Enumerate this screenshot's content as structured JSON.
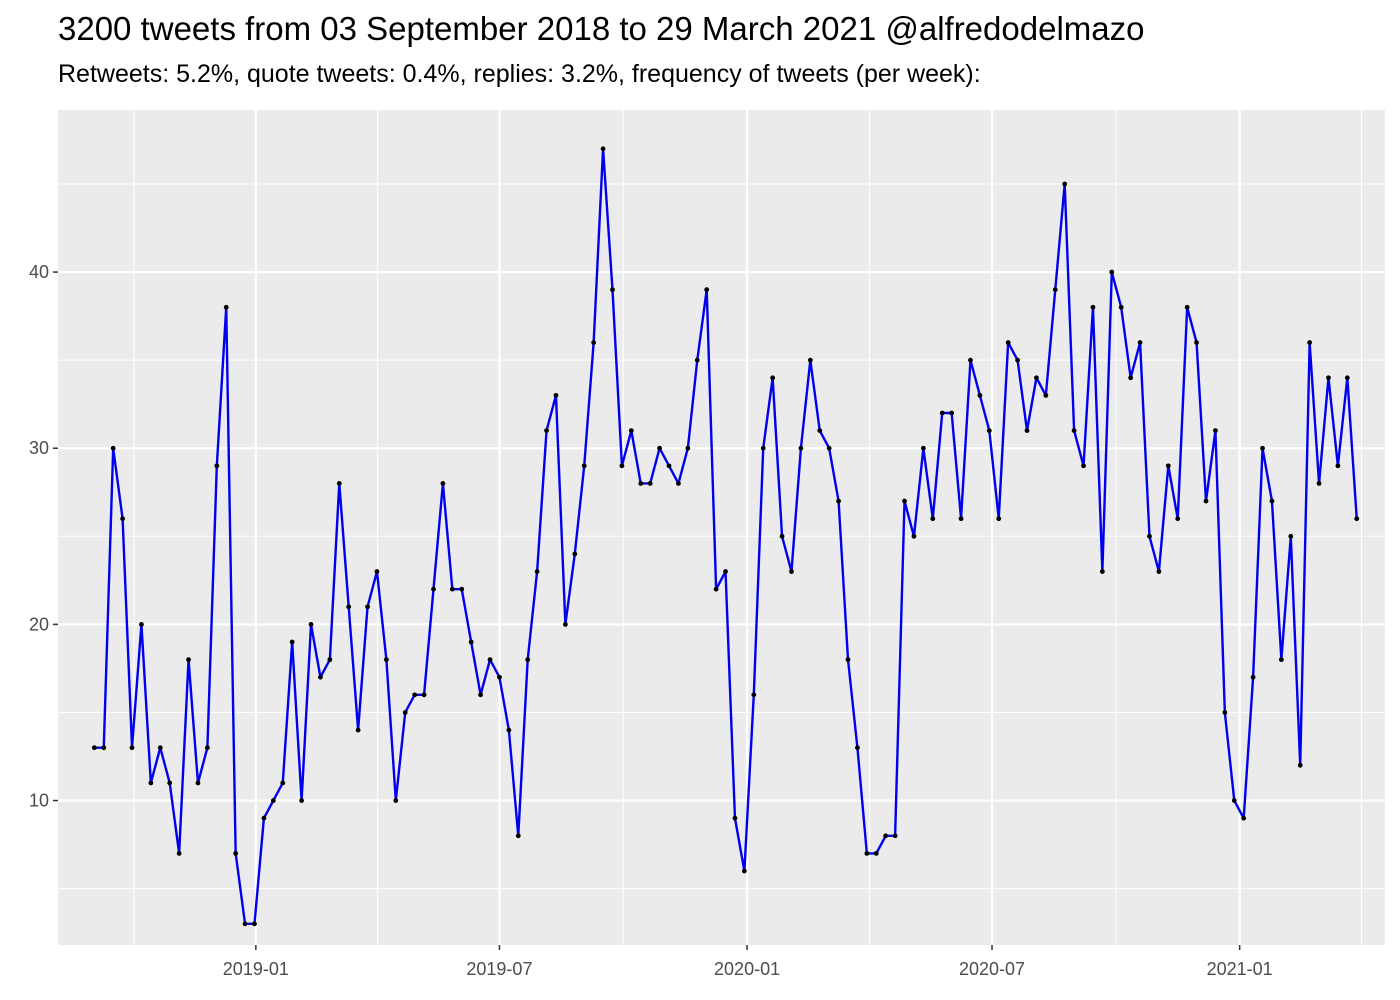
{
  "chart_data": {
    "type": "line",
    "title": "3200 tweets from 03 September 2018 to 29 March 2021 @alfredodelmazo",
    "subtitle": "Retweets: 5.2%, quote tweets: 0.4%, replies: 3.2%, frequency of tweets (per week):",
    "xlabel": "",
    "ylabel": "",
    "x_start_date": "2018-09-03",
    "x_step_days": 7,
    "x_ticks": [
      {
        "date": "2019-01-01",
        "label": "2019-01"
      },
      {
        "date": "2019-07-01",
        "label": "2019-07"
      },
      {
        "date": "2020-01-01",
        "label": "2020-01"
      },
      {
        "date": "2020-07-01",
        "label": "2020-07"
      },
      {
        "date": "2021-01-01",
        "label": "2021-01"
      }
    ],
    "y_ticks": [
      10,
      20,
      30,
      40
    ],
    "ylim": [
      1.8,
      49.2
    ],
    "xlim": [
      "2018-08-07",
      "2021-04-19"
    ],
    "grid": true,
    "line_color": "#0000ee",
    "point_color": "#000000",
    "panel_background": "#ebebeb",
    "values": [
      13,
      13,
      30,
      26,
      13,
      20,
      11,
      13,
      11,
      7,
      18,
      11,
      13,
      29,
      38,
      7,
      3,
      3,
      9,
      10,
      11,
      19,
      10,
      20,
      17,
      18,
      28,
      21,
      14,
      21,
      23,
      18,
      10,
      15,
      16,
      16,
      22,
      28,
      22,
      22,
      19,
      16,
      18,
      17,
      14,
      8,
      18,
      23,
      31,
      33,
      20,
      24,
      29,
      36,
      47,
      39,
      29,
      31,
      28,
      28,
      30,
      29,
      28,
      30,
      35,
      39,
      22,
      23,
      9,
      6,
      16,
      30,
      34,
      25,
      23,
      30,
      35,
      31,
      30,
      27,
      18,
      13,
      7,
      7,
      8,
      8,
      27,
      25,
      30,
      26,
      32,
      32,
      26,
      35,
      33,
      31,
      26,
      36,
      35,
      31,
      34,
      33,
      39,
      45,
      31,
      29,
      38,
      23,
      40,
      38,
      34,
      36,
      25,
      23,
      29,
      26,
      38,
      36,
      27,
      31,
      15,
      10,
      9,
      17,
      30,
      27,
      18,
      25,
      12,
      36,
      28,
      34,
      29,
      34,
      26
    ]
  }
}
